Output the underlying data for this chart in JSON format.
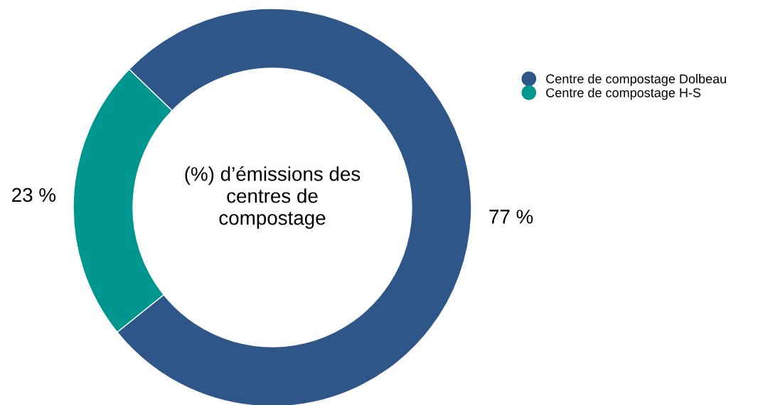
{
  "chart_data": {
    "type": "donut",
    "title": "(%) d’émissions des\ncentres de\ncompostage",
    "categories": [
      "Centre de compostage Dolbeau",
      "Centre de compostage H-S"
    ],
    "values": [
      77,
      23
    ],
    "colors": [
      "#2e5688",
      "#009690"
    ],
    "value_labels": [
      "77 %",
      "23 %"
    ],
    "legend": "top right"
  }
}
